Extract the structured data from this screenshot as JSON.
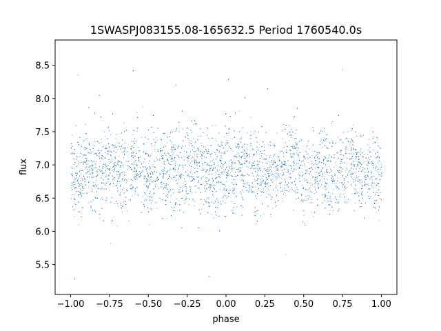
{
  "chart_data": {
    "type": "scatter",
    "title": "1SWASPJ083155.08-165632.5 Period 1760540.0s",
    "xlabel": "phase",
    "ylabel": "flux",
    "xlim": [
      -1.1,
      1.1
    ],
    "ylim": [
      5.05,
      8.88
    ],
    "xticks": [
      "−1.00",
      "−0.75",
      "−0.50",
      "−0.25",
      "0.00",
      "0.25",
      "0.50",
      "0.75",
      "1.00"
    ],
    "xtick_values": [
      -1.0,
      -0.75,
      -0.5,
      -0.25,
      0.0,
      0.25,
      0.5,
      0.75,
      1.0
    ],
    "yticks": [
      "5.5",
      "6.0",
      "6.5",
      "7.0",
      "7.5",
      "8.0",
      "8.5"
    ],
    "ytick_values": [
      5.5,
      6.0,
      6.5,
      7.0,
      7.5,
      8.0,
      8.5
    ],
    "series": [
      {
        "color": "#1f77b4",
        "phase_range": [
          -1.0,
          1.0
        ],
        "flux_mean": 6.95,
        "flux_spread": 0.3,
        "flux_extremes": [
          5.25,
          8.65
        ],
        "points": [
          {
            "x": -1.0,
            "y": 7.0
          },
          {
            "x": -0.95,
            "y": 6.4
          },
          {
            "x": -0.9,
            "y": 7.3
          },
          {
            "x": -0.85,
            "y": 6.6
          },
          {
            "x": -0.75,
            "y": 7.1
          },
          {
            "x": -0.7,
            "y": 6.7
          },
          {
            "x": -0.55,
            "y": 7.3
          },
          {
            "x": -0.5,
            "y": 6.5
          },
          {
            "x": -0.45,
            "y": 7.0
          },
          {
            "x": -0.3,
            "y": 6.8
          },
          {
            "x": -0.2,
            "y": 7.2
          },
          {
            "x": -0.05,
            "y": 6.6
          },
          {
            "x": 0.0,
            "y": 6.9
          },
          {
            "x": 0.1,
            "y": 7.1
          },
          {
            "x": 0.25,
            "y": 6.7
          },
          {
            "x": 0.35,
            "y": 7.0
          },
          {
            "x": 0.45,
            "y": 7.3
          },
          {
            "x": 0.5,
            "y": 6.4
          },
          {
            "x": 0.6,
            "y": 7.0
          },
          {
            "x": 0.7,
            "y": 6.8
          },
          {
            "x": 0.8,
            "y": 7.2
          },
          {
            "x": 0.9,
            "y": 6.6
          },
          {
            "x": 0.95,
            "y": 7.0
          },
          {
            "x": 1.0,
            "y": 6.8
          }
        ]
      }
    ]
  }
}
